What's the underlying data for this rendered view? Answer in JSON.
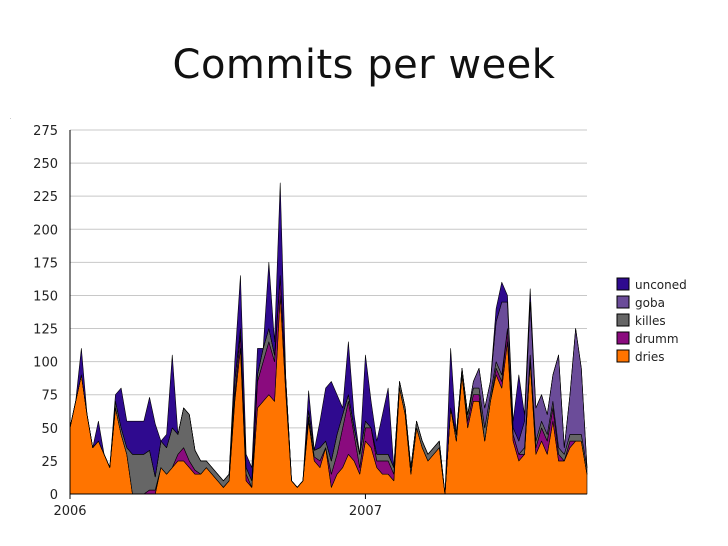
{
  "chart_data": {
    "type": "area",
    "stacked": true,
    "title": "Commits per week",
    "xlabel": "",
    "ylabel": "",
    "ylim": [
      0,
      275
    ],
    "yticks": [
      0,
      25,
      50,
      75,
      100,
      125,
      150,
      175,
      200,
      225,
      250,
      275
    ],
    "x_tick_labels": [
      {
        "label": "2006",
        "week": 0
      },
      {
        "label": "2007",
        "week": 52
      }
    ],
    "grid": true,
    "legend_position": "right",
    "weeks": 92,
    "series": [
      {
        "name": "dries",
        "color": "#ff7400",
        "values": [
          50,
          70,
          90,
          60,
          35,
          40,
          30,
          20,
          65,
          45,
          30,
          0,
          0,
          0,
          0,
          0,
          20,
          15,
          20,
          25,
          25,
          20,
          15,
          15,
          20,
          15,
          10,
          5,
          10,
          70,
          110,
          10,
          5,
          65,
          70,
          75,
          70,
          150,
          75,
          10,
          5,
          10,
          55,
          25,
          20,
          35,
          5,
          15,
          20,
          30,
          25,
          15,
          40,
          35,
          20,
          15,
          15,
          10,
          80,
          60,
          15,
          50,
          35,
          25,
          30,
          35,
          0,
          65,
          40,
          90,
          50,
          70,
          70,
          40,
          70,
          90,
          80,
          115,
          40,
          25,
          30,
          100,
          30,
          40,
          30,
          55,
          25,
          25,
          35,
          40,
          40,
          15
        ]
      },
      {
        "name": "drumm",
        "color": "#8a0b7e",
        "values": [
          0,
          0,
          0,
          0,
          0,
          0,
          0,
          0,
          0,
          0,
          0,
          0,
          0,
          0,
          3,
          3,
          0,
          0,
          0,
          5,
          10,
          5,
          3,
          0,
          0,
          0,
          0,
          0,
          0,
          5,
          10,
          5,
          0,
          20,
          30,
          40,
          30,
          15,
          10,
          0,
          0,
          0,
          3,
          3,
          5,
          0,
          10,
          15,
          30,
          40,
          20,
          5,
          10,
          15,
          5,
          10,
          10,
          5,
          0,
          0,
          0,
          0,
          0,
          0,
          0,
          0,
          0,
          0,
          0,
          0,
          5,
          5,
          5,
          0,
          0,
          5,
          5,
          10,
          5,
          5,
          0,
          0,
          5,
          10,
          10,
          10,
          5,
          0,
          5,
          0,
          0,
          0
        ]
      },
      {
        "name": "killes",
        "color": "#666666",
        "values": [
          0,
          0,
          0,
          0,
          0,
          0,
          0,
          0,
          5,
          5,
          5,
          30,
          30,
          30,
          30,
          10,
          20,
          20,
          30,
          15,
          30,
          35,
          15,
          10,
          5,
          5,
          5,
          5,
          5,
          10,
          5,
          5,
          5,
          5,
          10,
          10,
          5,
          0,
          0,
          0,
          0,
          0,
          5,
          5,
          10,
          5,
          10,
          15,
          10,
          5,
          5,
          10,
          5,
          0,
          5,
          5,
          5,
          5,
          5,
          5,
          5,
          5,
          5,
          5,
          5,
          5,
          0,
          0,
          5,
          5,
          5,
          5,
          5,
          10,
          5,
          5,
          5,
          0,
          0,
          0,
          5,
          5,
          5,
          5,
          5,
          5,
          5,
          5,
          5,
          5,
          5,
          5
        ]
      },
      {
        "name": "goba",
        "color": "#6b4c99",
        "values": [
          0,
          0,
          0,
          0,
          0,
          0,
          0,
          0,
          0,
          0,
          0,
          0,
          0,
          0,
          0,
          0,
          0,
          0,
          0,
          0,
          0,
          0,
          0,
          0,
          0,
          0,
          0,
          0,
          0,
          0,
          0,
          0,
          0,
          0,
          0,
          0,
          0,
          0,
          0,
          0,
          0,
          0,
          0,
          0,
          0,
          0,
          0,
          0,
          0,
          0,
          0,
          0,
          0,
          0,
          0,
          0,
          0,
          0,
          0,
          0,
          0,
          0,
          0,
          0,
          0,
          0,
          0,
          0,
          0,
          0,
          0,
          5,
          15,
          15,
          10,
          30,
          55,
          20,
          5,
          10,
          20,
          40,
          25,
          20,
          15,
          20,
          70,
          5,
          30,
          80,
          50,
          0
        ]
      },
      {
        "name": "unconed",
        "color": "#2f0a8f",
        "values": [
          0,
          0,
          20,
          0,
          0,
          15,
          0,
          0,
          5,
          30,
          20,
          25,
          25,
          25,
          40,
          40,
          0,
          10,
          55,
          0,
          0,
          0,
          0,
          0,
          0,
          0,
          0,
          0,
          0,
          15,
          40,
          10,
          10,
          20,
          0,
          50,
          10,
          70,
          0,
          0,
          0,
          0,
          15,
          0,
          20,
          40,
          60,
          30,
          5,
          40,
          10,
          0,
          50,
          20,
          10,
          30,
          50,
          0,
          0,
          0,
          0,
          0,
          0,
          0,
          0,
          0,
          0,
          45,
          0,
          0,
          0,
          0,
          0,
          0,
          0,
          10,
          15,
          5,
          5,
          50,
          5,
          10,
          0,
          0,
          0,
          0,
          0,
          0,
          0,
          0,
          0,
          0
        ]
      }
    ]
  }
}
